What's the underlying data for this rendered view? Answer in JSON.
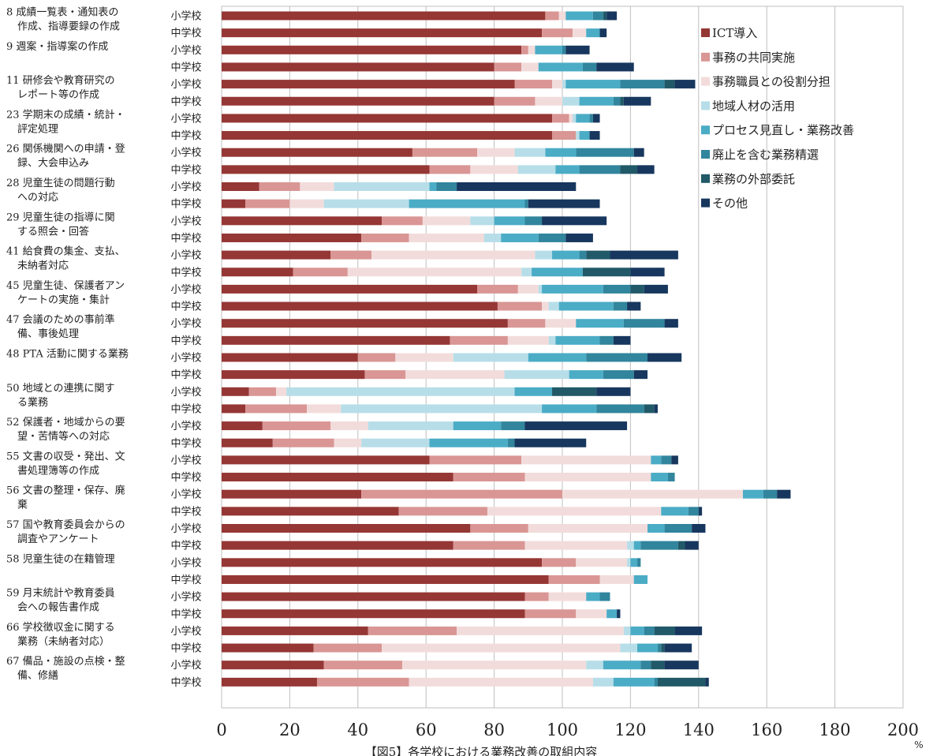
{
  "chart_data": {
    "type": "bar",
    "orientation": "horizontal",
    "stacked": true,
    "title": "【図5】各学校における業務改善の取組内容",
    "xlabel": "",
    "unit": "%",
    "xlim": [
      0,
      200
    ],
    "xticks": [
      0,
      20,
      40,
      60,
      80,
      100,
      120,
      140,
      160,
      180,
      200
    ],
    "grid": true,
    "legend_position": "right-top",
    "series_names": [
      "ICT導入",
      "事務の共同実施",
      "事務職員との役割分担",
      "地域人材の活用",
      "プロセス見直し・業務改善",
      "廃止を含む業務精選",
      "業務の外部委託",
      "その他"
    ],
    "colors": [
      "#953735",
      "#d99694",
      "#f2dcdb",
      "#b7dee8",
      "#4bacc6",
      "#31859c",
      "#215968",
      "#17375e"
    ],
    "school_types": [
      "小学校",
      "中学校"
    ],
    "categories": [
      {
        "label": [
          "8 成績一覧表・通知表の",
          "作成、指導要録の作成"
        ],
        "rows": [
          [
            95,
            4,
            2,
            0,
            8,
            3,
            1,
            3
          ],
          [
            94,
            9,
            4,
            0,
            4,
            0,
            0,
            2
          ]
        ]
      },
      {
        "label": [
          "9 週案・指導案の作成"
        ],
        "rows": [
          [
            88,
            2,
            2,
            0,
            8,
            1,
            0,
            7
          ],
          [
            80,
            8,
            5,
            0,
            13,
            4,
            0,
            11
          ]
        ]
      },
      {
        "label": [
          "11 研修会や教育研究の",
          "レポート等の作成"
        ],
        "rows": [
          [
            86,
            11,
            3,
            1,
            16,
            13,
            3,
            6
          ],
          [
            80,
            12,
            8,
            5,
            10,
            2,
            1,
            8
          ]
        ]
      },
      {
        "label": [
          "23 学期末の成績・統計・",
          "評定処理"
        ],
        "rows": [
          [
            97,
            5,
            1,
            1,
            4,
            1,
            0,
            2
          ],
          [
            97,
            7,
            0,
            1,
            3,
            0,
            0,
            3
          ]
        ]
      },
      {
        "label": [
          "26 関係機関への申請・登",
          "録、大会申込み"
        ],
        "rows": [
          [
            56,
            19,
            11,
            9,
            9,
            17,
            0,
            3
          ],
          [
            61,
            12,
            14,
            11,
            7,
            12,
            5,
            5
          ]
        ]
      },
      {
        "label": [
          "28 児童生徒の問題行動",
          "への対応"
        ],
        "rows": [
          [
            11,
            12,
            10,
            28,
            2,
            6,
            0,
            35
          ],
          [
            7,
            13,
            10,
            25,
            34,
            1,
            0,
            21
          ]
        ]
      },
      {
        "label": [
          "29 児童生徒の指導に関",
          "する照会・回答"
        ],
        "rows": [
          [
            47,
            12,
            14,
            7,
            9,
            5,
            0,
            19
          ],
          [
            41,
            14,
            22,
            5,
            11,
            8,
            0,
            8
          ]
        ]
      },
      {
        "label": [
          "41 給食費の集金、支払、",
          "未納者対応"
        ],
        "rows": [
          [
            32,
            12,
            48,
            5,
            8,
            2,
            7,
            20
          ],
          [
            21,
            16,
            51,
            3,
            15,
            0,
            14,
            10
          ]
        ]
      },
      {
        "label": [
          "45 児童生徒、保護者アン",
          "ケートの実施・集計"
        ],
        "rows": [
          [
            75,
            12,
            6,
            1,
            18,
            8,
            4,
            7
          ],
          [
            81,
            13,
            2,
            3,
            16,
            4,
            0,
            4
          ]
        ]
      },
      {
        "label": [
          "47 会議のための事前準",
          "備、事後処理"
        ],
        "rows": [
          [
            84,
            11,
            9,
            0,
            14,
            12,
            0,
            4
          ],
          [
            67,
            17,
            12,
            2,
            13,
            4,
            0,
            5
          ]
        ]
      },
      {
        "label": [
          "48 PTA 活動に関する業務"
        ],
        "rows": [
          [
            40,
            11,
            17,
            22,
            17,
            18,
            0,
            10
          ],
          [
            42,
            12,
            29,
            19,
            10,
            9,
            0,
            4
          ]
        ]
      },
      {
        "label": [
          "50 地域との連携に関す",
          "る業務"
        ],
        "rows": [
          [
            8,
            8,
            3,
            67,
            11,
            0,
            13,
            10
          ],
          [
            7,
            18,
            10,
            59,
            16,
            14,
            3,
            1
          ]
        ]
      },
      {
        "label": [
          "52 保護者・地域からの要",
          "望・苦情等への対応"
        ],
        "rows": [
          [
            12,
            20,
            11,
            25,
            14,
            7,
            0,
            30
          ],
          [
            15,
            18,
            8,
            20,
            23,
            2,
            0,
            21
          ]
        ]
      },
      {
        "label": [
          "55 文書の収受・発出、文",
          "書処理簿等の作成"
        ],
        "rows": [
          [
            61,
            27,
            38,
            0,
            3,
            3,
            0,
            2
          ],
          [
            68,
            21,
            37,
            0,
            5,
            2,
            0,
            0
          ]
        ]
      },
      {
        "label": [
          "56 文書の整理・保存、廃",
          "棄"
        ],
        "rows": [
          [
            41,
            59,
            53,
            0,
            6,
            4,
            0,
            4
          ],
          [
            52,
            26,
            51,
            0,
            8,
            3,
            0,
            1
          ]
        ]
      },
      {
        "label": [
          "57 国や教育委員会からの",
          "調査やアンケート"
        ],
        "rows": [
          [
            73,
            17,
            35,
            0,
            5,
            8,
            0,
            4
          ],
          [
            68,
            21,
            30,
            2,
            2,
            11,
            2,
            4
          ]
        ]
      },
      {
        "label": [
          "58 児童生徒の在籍管理"
        ],
        "rows": [
          [
            94,
            10,
            15,
            1,
            2,
            1,
            0,
            0
          ],
          [
            96,
            15,
            10,
            0,
            4,
            0,
            0,
            0
          ]
        ]
      },
      {
        "label": [
          "59 月末統計や教育委員",
          "会への報告書作成"
        ],
        "rows": [
          [
            89,
            7,
            11,
            0,
            4,
            3,
            0,
            0
          ],
          [
            89,
            15,
            9,
            0,
            3,
            0,
            0,
            1
          ]
        ]
      },
      {
        "label": [
          "66 学校徴収金に関する",
          "業務（未納者対応）"
        ],
        "rows": [
          [
            43,
            26,
            49,
            2,
            4,
            3,
            6,
            8
          ],
          [
            27,
            20,
            70,
            5,
            6,
            1,
            1,
            8
          ]
        ]
      },
      {
        "label": [
          "67 備品・施設の点検・整",
          "備、修繕"
        ],
        "rows": [
          [
            30,
            23,
            54,
            5,
            11,
            3,
            4,
            10
          ],
          [
            28,
            27,
            54,
            6,
            12,
            1,
            14,
            1
          ]
        ]
      }
    ]
  }
}
